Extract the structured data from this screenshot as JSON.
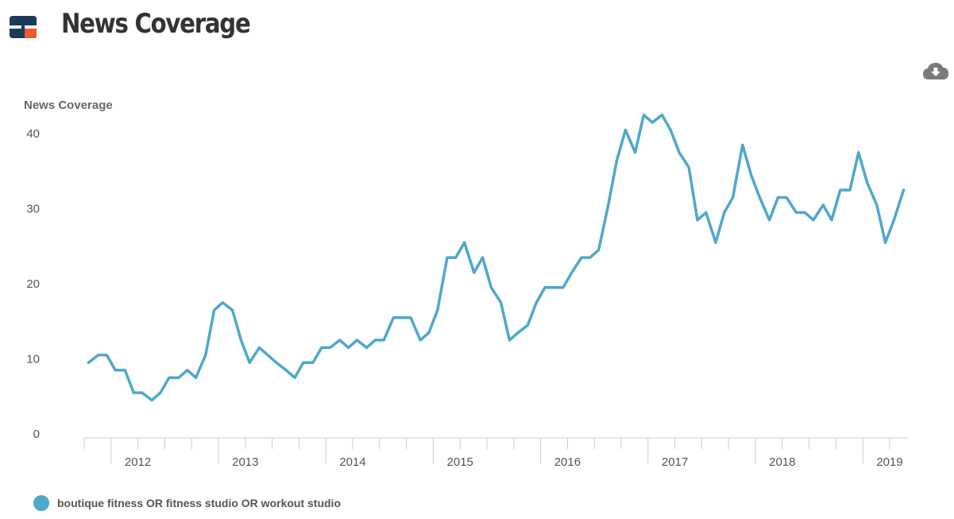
{
  "header": {
    "title": "News Coverage",
    "logo_colors": {
      "primary": "#1b3a5c",
      "accent": "#f15a29"
    }
  },
  "toolbar": {
    "download_icon": "cloud-download-icon"
  },
  "chart_data": {
    "type": "line",
    "ylabel": "News Coverage",
    "ylim": [
      0,
      45
    ],
    "yticks": [
      0,
      10,
      20,
      30,
      40
    ],
    "xlim": [
      2011.75,
      2019.42
    ],
    "xtick_labels": [
      "2012",
      "2013",
      "2014",
      "2015",
      "2016",
      "2017",
      "2018",
      "2019"
    ],
    "grid": false,
    "legend_position": "bottom-left",
    "series": [
      {
        "name": "boutique fitness OR fitness studio OR workout studio",
        "color": "#4ea8cc",
        "x": [
          2011.79,
          2011.88,
          2011.96,
          2012.04,
          2012.13,
          2012.21,
          2012.29,
          2012.38,
          2012.46,
          2012.54,
          2012.63,
          2012.71,
          2012.79,
          2012.88,
          2012.96,
          2013.04,
          2013.13,
          2013.21,
          2013.29,
          2013.38,
          2013.46,
          2013.54,
          2013.63,
          2013.71,
          2013.79,
          2013.88,
          2013.96,
          2014.04,
          2014.13,
          2014.21,
          2014.29,
          2014.38,
          2014.46,
          2014.54,
          2014.63,
          2014.71,
          2014.79,
          2014.88,
          2014.96,
          2015.04,
          2015.13,
          2015.21,
          2015.29,
          2015.38,
          2015.46,
          2015.54,
          2015.63,
          2015.71,
          2015.79,
          2015.88,
          2015.96,
          2016.04,
          2016.13,
          2016.21,
          2016.29,
          2016.38,
          2016.46,
          2016.54,
          2016.63,
          2016.71,
          2016.79,
          2016.88,
          2016.96,
          2017.04,
          2017.13,
          2017.21,
          2017.29,
          2017.38,
          2017.46,
          2017.54,
          2017.63,
          2017.71,
          2017.79,
          2017.88,
          2017.96,
          2018.04,
          2018.13,
          2018.21,
          2018.29,
          2018.38,
          2018.46,
          2018.54,
          2018.63,
          2018.71,
          2018.79,
          2018.88,
          2018.96,
          2019.04,
          2019.13,
          2019.21,
          2019.29,
          2019.38
        ],
        "values": [
          9.5,
          10.5,
          10.5,
          8.5,
          8.5,
          5.5,
          5.5,
          4.5,
          5.5,
          7.5,
          7.5,
          8.5,
          7.5,
          10.5,
          16.5,
          17.5,
          16.5,
          12.5,
          9.5,
          11.5,
          10.5,
          9.5,
          8.5,
          7.5,
          9.5,
          9.5,
          11.5,
          11.5,
          12.5,
          11.5,
          12.5,
          11.5,
          12.5,
          12.5,
          15.5,
          15.5,
          15.5,
          12.5,
          13.5,
          16.5,
          23.5,
          23.5,
          25.5,
          21.5,
          23.5,
          19.5,
          17.5,
          12.5,
          13.5,
          14.5,
          17.5,
          19.5,
          19.5,
          19.5,
          21.5,
          23.5,
          23.5,
          24.5,
          30.5,
          36.5,
          40.5,
          37.5,
          42.5,
          41.5,
          42.5,
          40.5,
          37.5,
          35.5,
          28.5,
          29.5,
          25.5,
          29.5,
          31.5,
          38.5,
          34.5,
          31.5,
          28.5,
          31.5,
          31.5,
          29.5,
          29.5,
          28.5,
          30.5,
          28.5,
          32.5,
          32.5,
          37.5,
          33.5,
          30.5,
          25.5,
          28.5,
          32.5
        ]
      }
    ]
  }
}
